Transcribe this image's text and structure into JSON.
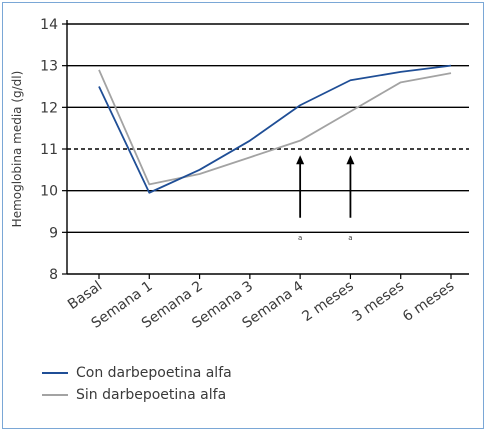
{
  "chart_data": {
    "type": "line",
    "categories": [
      "Basal",
      "Semana 1",
      "Semana 2",
      "Semana 3",
      "Semana 4",
      "2 meses",
      "3 meses",
      "6 meses"
    ],
    "ylabel": "Hemoglobina media  (g/dl)",
    "ylim": [
      8,
      14
    ],
    "yticks": [
      "8",
      "9",
      "10",
      "11",
      "12",
      "13",
      "14"
    ],
    "grid": "horizontal",
    "reference_line": 11,
    "series": [
      {
        "name": "Con darbepoetina alfa",
        "color": "#1f4e96",
        "values": [
          12.5,
          9.95,
          10.5,
          11.2,
          12.05,
          12.65,
          12.85,
          13.0
        ]
      },
      {
        "name": "Sin darbepoetina alfa",
        "color": "#a3a3a3",
        "values": [
          12.9,
          10.15,
          10.4,
          10.8,
          11.2,
          11.9,
          12.6,
          12.82
        ]
      }
    ],
    "annotations": [
      {
        "category_index": 4,
        "label": "a",
        "from": 9.35,
        "to": 10.85
      },
      {
        "category_index": 5,
        "label": "a",
        "from": 9.35,
        "to": 10.85
      }
    ],
    "legend_position": "bottom-left"
  }
}
